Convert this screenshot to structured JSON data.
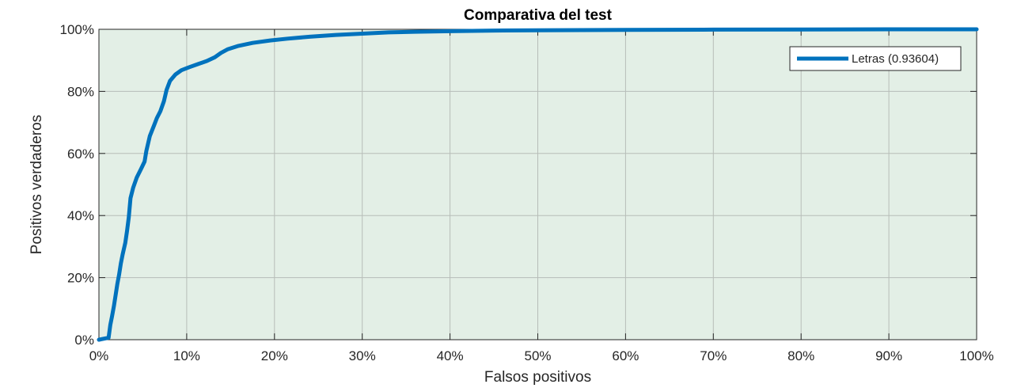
{
  "chart_data": {
    "type": "line",
    "title": "Comparativa del test",
    "xlabel": "Falsos positivos",
    "ylabel": "Positivos verdaderos",
    "xlim": [
      0,
      100
    ],
    "ylim": [
      0,
      100
    ],
    "x_ticks": [
      "0%",
      "10%",
      "20%",
      "30%",
      "40%",
      "50%",
      "60%",
      "70%",
      "80%",
      "90%",
      "100%"
    ],
    "y_ticks": [
      "0%",
      "20%",
      "40%",
      "60%",
      "80%",
      "100%"
    ],
    "grid": true,
    "legend_position": "top-right",
    "plot_background": "#e3efe6",
    "series": [
      {
        "name": "Letras (0.93604)",
        "color": "#0072bd",
        "x": [
          0,
          1.1,
          1.3,
          1.5,
          1.7,
          1.9,
          2.1,
          2.3,
          2.5,
          2.7,
          3.0,
          3.2,
          3.4,
          3.6,
          3.9,
          4.3,
          4.8,
          5.2,
          5.4,
          5.8,
          6.3,
          6.6,
          7.0,
          7.4,
          7.7,
          8.1,
          8.7,
          9.4,
          10.3,
          11.3,
          12.3,
          13.2,
          13.9,
          14.7,
          15.8,
          17.5,
          19.5,
          21.5,
          24,
          27,
          30,
          33,
          36,
          40,
          45,
          50,
          60,
          70,
          80,
          90,
          100
        ],
        "y": [
          0,
          0.6,
          4.8,
          7.6,
          10.8,
          14.4,
          18.0,
          21.0,
          24.6,
          27.4,
          31.2,
          35.0,
          39.4,
          45.6,
          49.0,
          52.2,
          55.0,
          57.4,
          60.8,
          65.6,
          69.2,
          71.4,
          73.6,
          76.8,
          80.4,
          83.4,
          85.4,
          86.8,
          87.8,
          88.8,
          89.8,
          91.0,
          92.4,
          93.6,
          94.6,
          95.6,
          96.4,
          97.0,
          97.6,
          98.2,
          98.6,
          99.0,
          99.2,
          99.4,
          99.6,
          99.7,
          99.8,
          99.9,
          99.95,
          100,
          100
        ]
      }
    ]
  }
}
